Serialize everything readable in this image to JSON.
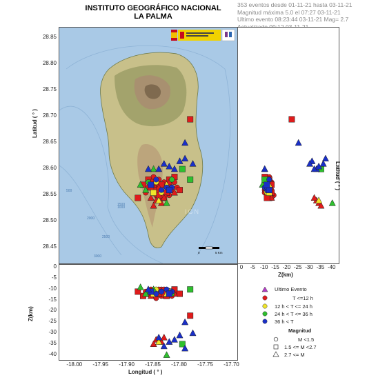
{
  "header": {
    "title_line1": "INSTITUTO GEOGRÁFICO NACIONAL",
    "title_line2": "LA PALMA",
    "info": [
      "353 eventos desde 01-11-21 hasta 03-11-21",
      "Magnitud máxima 5.0 el 07:27 03-11-21",
      "Ultimo evento   08:23:44 03-11-21  Mag= 2.7",
      "Actualizado   09:12  03-11-21"
    ]
  },
  "map": {
    "ylabel": "Latitud ( ° )",
    "lat_ticks": [
      "28.85",
      "28.80",
      "28.75",
      "28.70",
      "28.65",
      "28.60",
      "28.55",
      "28.50",
      "28.45"
    ],
    "watermark": "IGN",
    "scale_labels": [
      "0",
      "5 Km"
    ],
    "contour_labels": [
      "500",
      "1000",
      "1500",
      "2000",
      "2500",
      "3000"
    ],
    "logos": [
      "flag-logo",
      "ministry-crest-logo",
      "ign-logo"
    ]
  },
  "lat_depth": {
    "xlabel": "Z(km)",
    "ylabel": "Latitud ( ° )",
    "z_ticks": [
      "0",
      "-5",
      "-10",
      "-15",
      "-20",
      "-25",
      "-30",
      "-35",
      "-40"
    ]
  },
  "lon_depth": {
    "xlabel": "Longitud ( ° )",
    "ylabel": "Z(km)",
    "lon_ticks": [
      "-18.00",
      "-17.95",
      "-17.90",
      "-17.85",
      "-17.80",
      "-17.75",
      "-17.70"
    ],
    "z_ticks": [
      "0",
      "-5",
      "-10",
      "-15",
      "-20",
      "-25",
      "-30",
      "-35",
      "-40"
    ]
  },
  "legend": {
    "time_items": [
      {
        "label": "Ultimo Evento",
        "color": "#b43cc8",
        "shape": "triangle"
      },
      {
        "label": "T <=12 h",
        "color": "#e01b1b",
        "shape": "circle"
      },
      {
        "label": "12 h  < T <= 24 h",
        "color": "#f0e62a",
        "shape": "circle"
      },
      {
        "label": "24 h  < T <= 36 h",
        "color": "#2ec02e",
        "shape": "circle"
      },
      {
        "label": "36 h <  T",
        "color": "#1a2fc8",
        "shape": "circle"
      }
    ],
    "mag_title": "Magnitud",
    "mag_items": [
      {
        "label": "M <1.5",
        "shape": "circle"
      },
      {
        "label": "1.5 <= M <2.7",
        "shape": "square"
      },
      {
        "label": "2.7 <= M",
        "shape": "triangle"
      }
    ]
  },
  "colors": {
    "recent": "#e01b1b",
    "h24": "#f0e62a",
    "h36": "#2ec02e",
    "old": "#1a2fc8",
    "last": "#b43cc8",
    "sea": "#a9c9e6",
    "land": "#c8c08a"
  },
  "chart_data": {
    "type": "scatter",
    "lon_range": [
      -18.03,
      -17.69
    ],
    "lat_range": [
      28.42,
      28.87
    ],
    "z_range": [
      0,
      -41
    ],
    "events": [
      {
        "lon": -17.845,
        "lat": 28.57,
        "z": -11,
        "shape": "circle",
        "color": "red"
      },
      {
        "lon": -17.84,
        "lat": 28.565,
        "z": -12,
        "shape": "circle",
        "color": "red"
      },
      {
        "lon": -17.835,
        "lat": 28.56,
        "z": -10,
        "shape": "circle",
        "color": "red"
      },
      {
        "lon": -17.83,
        "lat": 28.575,
        "z": -13,
        "shape": "circle",
        "color": "red"
      },
      {
        "lon": -17.85,
        "lat": 28.555,
        "z": -11,
        "shape": "circle",
        "color": "red"
      },
      {
        "lon": -17.825,
        "lat": 28.565,
        "z": -12,
        "shape": "circle",
        "color": "red"
      },
      {
        "lon": -17.82,
        "lat": 28.57,
        "z": -11,
        "shape": "circle",
        "color": "red"
      },
      {
        "lon": -17.855,
        "lat": 28.575,
        "z": -10,
        "shape": "circle",
        "color": "red"
      },
      {
        "lon": -17.84,
        "lat": 28.58,
        "z": -12,
        "shape": "circle",
        "color": "red"
      },
      {
        "lon": -17.815,
        "lat": 28.56,
        "z": -13,
        "shape": "circle",
        "color": "red"
      },
      {
        "lon": -17.845,
        "lat": 28.55,
        "z": -14,
        "shape": "circle",
        "color": "red"
      },
      {
        "lon": -17.83,
        "lat": 28.555,
        "z": -10,
        "shape": "circle",
        "color": "red"
      },
      {
        "lon": -17.86,
        "lat": 28.565,
        "z": -12,
        "shape": "circle",
        "color": "red"
      },
      {
        "lon": -17.81,
        "lat": 28.575,
        "z": -11,
        "shape": "circle",
        "color": "red"
      },
      {
        "lon": -17.835,
        "lat": 28.545,
        "z": -13,
        "shape": "circle",
        "color": "red"
      },
      {
        "lon": -17.85,
        "lat": 28.585,
        "z": -12,
        "shape": "circle",
        "color": "red"
      },
      {
        "lon": -17.82,
        "lat": 28.55,
        "z": -11,
        "shape": "circle",
        "color": "red"
      },
      {
        "lon": -17.805,
        "lat": 28.565,
        "z": -12,
        "shape": "circle",
        "color": "red"
      },
      {
        "lon": -17.865,
        "lat": 28.555,
        "z": -11,
        "shape": "circle",
        "color": "red"
      },
      {
        "lon": -17.84,
        "lat": 28.57,
        "z": -10,
        "shape": "circle",
        "color": "red"
      },
      {
        "lon": -17.845,
        "lat": 28.56,
        "z": -11,
        "shape": "square",
        "color": "red"
      },
      {
        "lon": -17.835,
        "lat": 28.57,
        "z": -12,
        "shape": "square",
        "color": "red"
      },
      {
        "lon": -17.825,
        "lat": 28.555,
        "z": -13,
        "shape": "square",
        "color": "red"
      },
      {
        "lon": -17.855,
        "lat": 28.565,
        "z": -11,
        "shape": "square",
        "color": "red"
      },
      {
        "lon": -17.81,
        "lat": 28.585,
        "z": -10,
        "shape": "square",
        "color": "red"
      },
      {
        "lon": -17.86,
        "lat": 28.58,
        "z": -12,
        "shape": "square",
        "color": "red"
      },
      {
        "lon": -17.82,
        "lat": 28.58,
        "z": -11,
        "shape": "square",
        "color": "red"
      },
      {
        "lon": -17.84,
        "lat": 28.55,
        "z": -12,
        "shape": "square",
        "color": "red"
      },
      {
        "lon": -17.87,
        "lat": 28.57,
        "z": -13,
        "shape": "square",
        "color": "red"
      },
      {
        "lon": -17.83,
        "lat": 28.545,
        "z": -12,
        "shape": "square",
        "color": "red"
      },
      {
        "lon": -17.85,
        "lat": 28.575,
        "z": -11,
        "shape": "square",
        "color": "red"
      },
      {
        "lon": -17.8,
        "lat": 28.56,
        "z": -12,
        "shape": "square",
        "color": "red"
      },
      {
        "lon": -17.845,
        "lat": 28.54,
        "z": -33,
        "shape": "triangle",
        "color": "red"
      },
      {
        "lon": -17.835,
        "lat": 28.535,
        "z": -34,
        "shape": "triangle",
        "color": "red"
      },
      {
        "lon": -17.85,
        "lat": 28.53,
        "z": -35,
        "shape": "triangle",
        "color": "red"
      },
      {
        "lon": -17.83,
        "lat": 28.545,
        "z": -32,
        "shape": "triangle",
        "color": "red"
      },
      {
        "lon": -17.84,
        "lat": 28.565,
        "z": -12,
        "shape": "triangle",
        "color": "red"
      },
      {
        "lon": -17.82,
        "lat": 28.575,
        "z": -11,
        "shape": "triangle",
        "color": "red"
      },
      {
        "lon": -17.855,
        "lat": 28.545,
        "z": -13,
        "shape": "triangle",
        "color": "red"
      },
      {
        "lon": -17.81,
        "lat": 28.555,
        "z": -12,
        "shape": "triangle",
        "color": "red"
      },
      {
        "lon": -17.88,
        "lat": 28.545,
        "z": -11,
        "shape": "square",
        "color": "red"
      },
      {
        "lon": -17.78,
        "lat": 28.695,
        "z": -22,
        "shape": "square",
        "color": "red"
      },
      {
        "lon": -17.835,
        "lat": 28.555,
        "z": -11,
        "shape": "circle",
        "color": "yellow"
      },
      {
        "lon": -17.845,
        "lat": 28.575,
        "z": -10,
        "shape": "circle",
        "color": "yellow"
      },
      {
        "lon": -17.82,
        "lat": 28.56,
        "z": -11,
        "shape": "square",
        "color": "yellow"
      },
      {
        "lon": -17.85,
        "lat": 28.555,
        "z": -12,
        "shape": "square",
        "color": "yellow"
      },
      {
        "lon": -17.84,
        "lat": 28.54,
        "z": -34,
        "shape": "triangle",
        "color": "yellow"
      },
      {
        "lon": -17.825,
        "lat": 28.57,
        "z": -12,
        "shape": "triangle",
        "color": "yellow"
      },
      {
        "lon": -17.85,
        "lat": 28.6,
        "z": -10,
        "shape": "triangle",
        "color": "green"
      },
      {
        "lon": -17.825,
        "lat": 28.535,
        "z": -40,
        "shape": "triangle",
        "color": "green"
      },
      {
        "lon": -17.875,
        "lat": 28.57,
        "z": -9,
        "shape": "triangle",
        "color": "green"
      },
      {
        "lon": -17.86,
        "lat": 28.575,
        "z": -11,
        "shape": "circle",
        "color": "green"
      },
      {
        "lon": -17.815,
        "lat": 28.58,
        "z": -12,
        "shape": "circle",
        "color": "green"
      },
      {
        "lon": -17.78,
        "lat": 28.58,
        "z": -10,
        "shape": "square",
        "color": "green"
      },
      {
        "lon": -17.795,
        "lat": 28.6,
        "z": -35,
        "shape": "square",
        "color": "green"
      },
      {
        "lon": -17.865,
        "lat": 28.56,
        "z": -12,
        "shape": "triangle",
        "color": "green"
      },
      {
        "lon": -17.835,
        "lat": 28.56,
        "z": -11,
        "shape": "circle",
        "color": "old"
      },
      {
        "lon": -17.825,
        "lat": 28.565,
        "z": -10,
        "shape": "circle",
        "color": "old"
      },
      {
        "lon": -17.845,
        "lat": 28.58,
        "z": -12,
        "shape": "circle",
        "color": "old"
      },
      {
        "lon": -17.815,
        "lat": 28.565,
        "z": -11,
        "shape": "circle",
        "color": "old"
      },
      {
        "lon": -17.8,
        "lat": 28.615,
        "z": -31,
        "shape": "triangle",
        "color": "old"
      },
      {
        "lon": -17.79,
        "lat": 28.65,
        "z": -25,
        "shape": "triangle",
        "color": "old"
      },
      {
        "lon": -17.81,
        "lat": 28.6,
        "z": -33,
        "shape": "triangle",
        "color": "old"
      },
      {
        "lon": -17.79,
        "lat": 28.62,
        "z": -37,
        "shape": "triangle",
        "color": "old"
      },
      {
        "lon": -17.84,
        "lat": 28.6,
        "z": -32,
        "shape": "triangle",
        "color": "old"
      },
      {
        "lon": -17.83,
        "lat": 28.61,
        "z": -36,
        "shape": "triangle",
        "color": "old"
      },
      {
        "lon": -17.82,
        "lat": 28.56,
        "z": -12,
        "shape": "square",
        "color": "old"
      },
      {
        "lon": -17.855,
        "lat": 28.57,
        "z": -11,
        "shape": "square",
        "color": "old"
      },
      {
        "lon": -17.86,
        "lat": 28.6,
        "z": -10,
        "shape": "triangle",
        "color": "old"
      },
      {
        "lon": -17.775,
        "lat": 28.61,
        "z": -30,
        "shape": "triangle",
        "color": "old"
      },
      {
        "lon": -17.82,
        "lat": 28.605,
        "z": -34,
        "shape": "triangle",
        "color": "old"
      }
    ]
  }
}
